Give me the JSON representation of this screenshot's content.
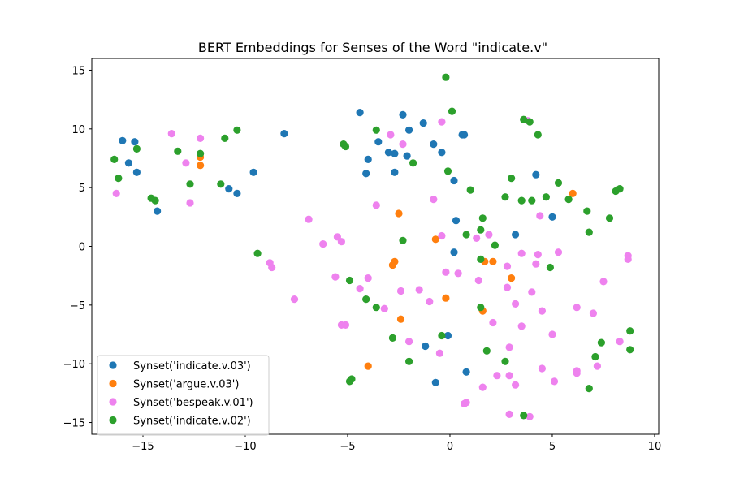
{
  "chart_data": {
    "type": "scatter",
    "title": "BERT Embeddings for Senses of the Word \"indicate.v\"",
    "xlabel": "",
    "ylabel": "",
    "xlim": [
      -17.5,
      10.2
    ],
    "ylim": [
      -16,
      16
    ],
    "x_ticks": [
      -15,
      -10,
      -5,
      0,
      5,
      10
    ],
    "y_ticks": [
      -15,
      -10,
      -5,
      0,
      5,
      10,
      15
    ],
    "x_tick_labels": [
      "−15",
      "−10",
      "−5",
      "0",
      "5",
      "10"
    ],
    "y_tick_labels": [
      "−15",
      "−10",
      "−5",
      "0",
      "5",
      "10",
      "15"
    ],
    "grid": false,
    "legend_position": "lower-left",
    "series": [
      {
        "name": "Synset('indicate.v.03')",
        "color": "#1f77b4",
        "points": [
          [
            -16.0,
            9.0
          ],
          [
            -15.4,
            8.9
          ],
          [
            -15.7,
            7.1
          ],
          [
            -15.3,
            6.3
          ],
          [
            -14.3,
            3.0
          ],
          [
            -10.8,
            4.9
          ],
          [
            -10.4,
            4.5
          ],
          [
            -9.6,
            6.3
          ],
          [
            -8.1,
            9.6
          ],
          [
            -4.4,
            11.4
          ],
          [
            -3.5,
            8.9
          ],
          [
            -4.0,
            7.4
          ],
          [
            -4.1,
            6.2
          ],
          [
            -3.0,
            8.0
          ],
          [
            -2.7,
            7.9
          ],
          [
            -2.7,
            6.3
          ],
          [
            -2.3,
            11.2
          ],
          [
            -2.1,
            7.7
          ],
          [
            -2.0,
            9.9
          ],
          [
            -1.3,
            10.5
          ],
          [
            -0.8,
            8.7
          ],
          [
            -0.4,
            8.0
          ],
          [
            0.2,
            5.6
          ],
          [
            0.6,
            9.5
          ],
          [
            0.7,
            9.5
          ],
          [
            0.3,
            2.2
          ],
          [
            0.2,
            -0.5
          ],
          [
            3.2,
            1.0
          ],
          [
            4.2,
            6.1
          ],
          [
            5.0,
            2.5
          ],
          [
            -0.1,
            -7.6
          ],
          [
            -1.2,
            -8.5
          ],
          [
            -0.7,
            -11.6
          ],
          [
            0.8,
            -10.7
          ]
        ]
      },
      {
        "name": "Synset('argue.v.03')",
        "color": "#ff7f0e",
        "points": [
          [
            -12.2,
            7.6
          ],
          [
            -12.2,
            6.9
          ],
          [
            -2.5,
            2.8
          ],
          [
            -0.7,
            0.6
          ],
          [
            -2.7,
            -1.3
          ],
          [
            -2.8,
            -1.6
          ],
          [
            -0.2,
            -4.4
          ],
          [
            -2.4,
            -6.2
          ],
          [
            -4.0,
            -10.2
          ],
          [
            1.6,
            -5.5
          ],
          [
            1.7,
            -1.3
          ],
          [
            2.1,
            -1.3
          ],
          [
            3.0,
            -2.7
          ],
          [
            6.0,
            4.5
          ]
        ]
      },
      {
        "name": "Synset('bespeak.v.01')",
        "color": "#ee82ee",
        "points": [
          [
            -16.3,
            4.5
          ],
          [
            -13.6,
            9.6
          ],
          [
            -12.9,
            7.1
          ],
          [
            -12.7,
            3.7
          ],
          [
            -12.2,
            9.2
          ],
          [
            -6.9,
            2.3
          ],
          [
            -6.2,
            0.2
          ],
          [
            -5.5,
            0.8
          ],
          [
            -5.3,
            0.4
          ],
          [
            -8.8,
            -1.4
          ],
          [
            -8.7,
            -1.8
          ],
          [
            -7.6,
            -4.5
          ],
          [
            -5.6,
            -2.6
          ],
          [
            -5.3,
            -6.7
          ],
          [
            -5.1,
            -6.7
          ],
          [
            -4.4,
            -3.6
          ],
          [
            -4.0,
            -2.7
          ],
          [
            -3.2,
            -5.3
          ],
          [
            -2.9,
            9.5
          ],
          [
            -2.3,
            8.7
          ],
          [
            -3.6,
            3.5
          ],
          [
            -2.4,
            -3.8
          ],
          [
            -2.0,
            -8.1
          ],
          [
            -1.5,
            -3.7
          ],
          [
            -1.0,
            -4.7
          ],
          [
            -0.8,
            4.0
          ],
          [
            -0.5,
            -9.1
          ],
          [
            -0.4,
            0.9
          ],
          [
            -0.2,
            -2.2
          ],
          [
            -0.4,
            10.6
          ],
          [
            0.4,
            -2.3
          ],
          [
            0.7,
            -13.4
          ],
          [
            0.8,
            -13.3
          ],
          [
            1.3,
            0.7
          ],
          [
            1.9,
            1.0
          ],
          [
            1.4,
            -2.9
          ],
          [
            1.6,
            -12.0
          ],
          [
            2.1,
            -6.5
          ],
          [
            2.3,
            -11.0
          ],
          [
            2.8,
            -1.7
          ],
          [
            2.8,
            -3.5
          ],
          [
            2.9,
            -8.6
          ],
          [
            2.9,
            -11.0
          ],
          [
            3.2,
            -4.9
          ],
          [
            3.2,
            -11.8
          ],
          [
            3.5,
            -0.6
          ],
          [
            3.5,
            -6.8
          ],
          [
            4.0,
            -3.9
          ],
          [
            4.2,
            -1.5
          ],
          [
            4.3,
            -0.7
          ],
          [
            4.4,
            2.6
          ],
          [
            4.5,
            -5.5
          ],
          [
            4.5,
            -10.4
          ],
          [
            5.0,
            -7.5
          ],
          [
            5.1,
            -11.5
          ],
          [
            5.3,
            -0.5
          ],
          [
            6.2,
            -5.2
          ],
          [
            6.2,
            -10.6
          ],
          [
            6.2,
            -10.8
          ],
          [
            7.0,
            -5.7
          ],
          [
            7.2,
            -10.2
          ],
          [
            7.5,
            -3.0
          ],
          [
            8.3,
            -8.1
          ],
          [
            8.7,
            -0.8
          ],
          [
            8.7,
            -1.1
          ],
          [
            2.9,
            -14.3
          ],
          [
            3.9,
            -14.5
          ],
          [
            3.8,
            10.7
          ]
        ]
      },
      {
        "name": "Synset('indicate.v.02')",
        "color": "#2ca02c",
        "points": [
          [
            -16.4,
            7.4
          ],
          [
            -16.2,
            5.8
          ],
          [
            -15.3,
            8.3
          ],
          [
            -14.6,
            4.1
          ],
          [
            -14.4,
            3.9
          ],
          [
            -13.3,
            8.1
          ],
          [
            -12.7,
            5.3
          ],
          [
            -12.2,
            7.9
          ],
          [
            -11.2,
            5.3
          ],
          [
            -11.0,
            9.2
          ],
          [
            -10.4,
            9.9
          ],
          [
            -9.4,
            -0.6
          ],
          [
            -5.2,
            8.7
          ],
          [
            -5.1,
            8.5
          ],
          [
            -4.9,
            -2.9
          ],
          [
            -4.1,
            -4.5
          ],
          [
            -3.6,
            -5.2
          ],
          [
            -3.6,
            9.9
          ],
          [
            -2.8,
            -7.8
          ],
          [
            -2.3,
            0.5
          ],
          [
            -2.0,
            -9.8
          ],
          [
            -1.8,
            7.1
          ],
          [
            -4.9,
            -11.5
          ],
          [
            -4.8,
            -11.3
          ],
          [
            -0.4,
            -7.6
          ],
          [
            -0.2,
            14.4
          ],
          [
            -0.1,
            6.4
          ],
          [
            0.1,
            11.5
          ],
          [
            0.8,
            1.0
          ],
          [
            1.0,
            4.8
          ],
          [
            1.5,
            1.4
          ],
          [
            1.6,
            2.4
          ],
          [
            1.5,
            -1.1
          ],
          [
            1.5,
            -5.2
          ],
          [
            1.8,
            -8.9
          ],
          [
            2.2,
            0.1
          ],
          [
            2.7,
            4.2
          ],
          [
            2.7,
            -9.8
          ],
          [
            3.0,
            5.8
          ],
          [
            3.5,
            3.9
          ],
          [
            3.6,
            10.8
          ],
          [
            3.9,
            10.6
          ],
          [
            4.0,
            3.9
          ],
          [
            4.3,
            9.5
          ],
          [
            4.7,
            4.2
          ],
          [
            4.9,
            -1.8
          ],
          [
            5.3,
            5.4
          ],
          [
            5.8,
            4.0
          ],
          [
            6.7,
            3.0
          ],
          [
            6.8,
            1.2
          ],
          [
            6.8,
            -12.1
          ],
          [
            7.1,
            -9.4
          ],
          [
            7.4,
            -8.2
          ],
          [
            7.8,
            2.4
          ],
          [
            8.1,
            4.7
          ],
          [
            8.3,
            4.9
          ],
          [
            8.8,
            -7.2
          ],
          [
            8.8,
            -8.8
          ],
          [
            3.6,
            -14.4
          ]
        ]
      }
    ]
  }
}
